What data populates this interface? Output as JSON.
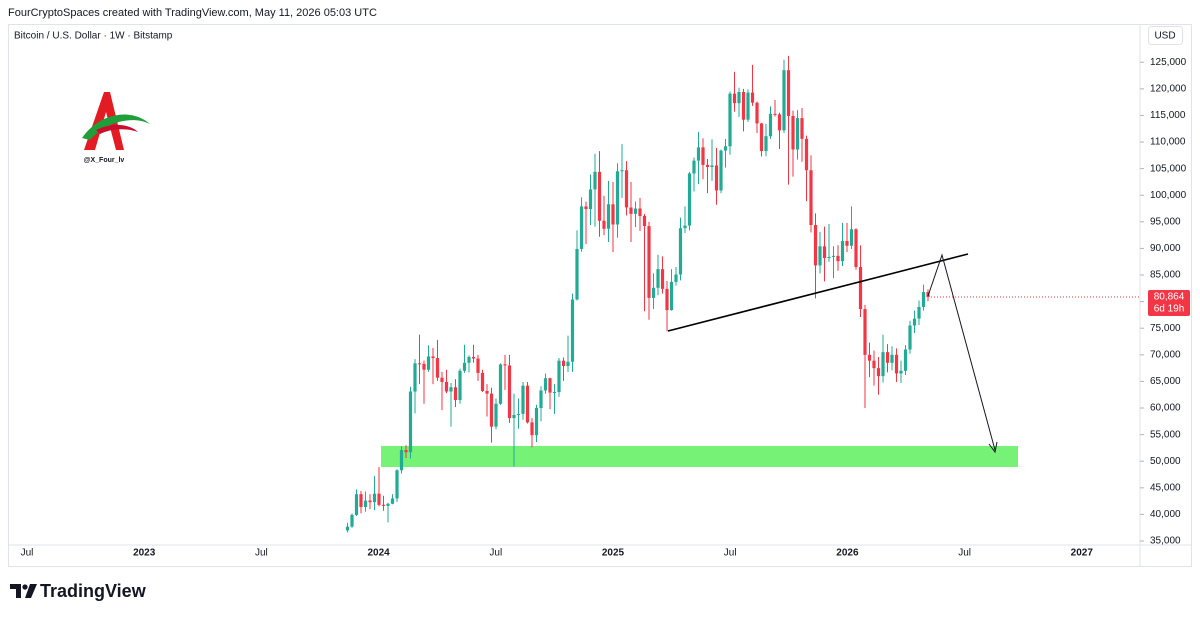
{
  "chart_data": {
    "type": "candlestick",
    "header": "FourCryptoSpaces created with TradingView.com, May 11, 2026 05:03 UTC",
    "title": "Bitcoin / U.S. Dollar · 1W · Bitstamp",
    "currency": "USD",
    "watermark": "@X_Four_lv",
    "brand": "TradingView",
    "last_price_label": "80,864",
    "countdown": "6d 19h",
    "up_color": "#22ab94",
    "down_color": "#f23645",
    "x_labels": [
      "Jul",
      "2023",
      "Jul",
      "2024",
      "Jul",
      "2025",
      "Jul",
      "2026",
      "Jul",
      "2027"
    ],
    "ylim": [
      34250,
      127300
    ],
    "yticks": [
      {
        "value": 35000,
        "label": "35,000"
      },
      {
        "value": 40000,
        "label": "40,000"
      },
      {
        "value": 45000,
        "label": "45,000"
      },
      {
        "value": 50000,
        "label": "50,000"
      },
      {
        "value": 55000,
        "label": "55,000"
      },
      {
        "value": 60000,
        "label": "60,000"
      },
      {
        "value": 65000,
        "label": "65,000"
      },
      {
        "value": 70000,
        "label": "70,000"
      },
      {
        "value": 75000,
        "label": "75,000"
      },
      {
        "value": 80000,
        "label": "80,000"
      },
      {
        "value": 85000,
        "label": "85,000"
      },
      {
        "value": 90000,
        "label": "90,000"
      },
      {
        "value": 95000,
        "label": "95,000"
      },
      {
        "value": 100000,
        "label": "100,000"
      },
      {
        "value": 105000,
        "label": "105,000"
      },
      {
        "value": 110000,
        "label": "110,000"
      },
      {
        "value": 115000,
        "label": "115,000"
      },
      {
        "value": 120000,
        "label": "120,000"
      },
      {
        "value": 125000,
        "label": "125,000"
      }
    ],
    "open": [
      37000,
      37700,
      39900,
      43800,
      41400,
      42600,
      42300,
      43900,
      41800,
      41600,
      42000,
      43000,
      48300,
      52100,
      51700,
      63100,
      68400,
      68300,
      67200,
      69700,
      69400,
      65700,
      64900,
      63100,
      63900,
      61500,
      67000,
      68500,
      69600,
      69300,
      66600,
      63200,
      62700,
      56500,
      60800,
      68200,
      68000,
      58100,
      58700,
      58900,
      64200,
      57300,
      54900,
      60000,
      63300,
      65600,
      62900,
      63000,
      68900,
      67900,
      68700,
      80400,
      89900,
      97900,
      97400,
      101100,
      104400,
      95200,
      93700,
      98300,
      94500,
      104500,
      104700,
      97700,
      96500,
      97500,
      96100,
      94200,
      80700,
      82600,
      86100,
      82400,
      78400,
      83700,
      85100,
      93800,
      94300,
      104100,
      106500,
      109000,
      105700,
      105300,
      105600,
      100900,
      108400,
      109200,
      119100,
      117300,
      119400,
      114200,
      119300,
      117400,
      113500,
      108300,
      111100,
      115300,
      115200,
      112200,
      123500,
      114900,
      108600,
      114500,
      110600,
      104700,
      94400,
      86800,
      90400,
      88200,
      88400,
      88600,
      87600,
      91400,
      90500,
      93600,
      86500,
      78600,
      70000,
      68900,
      67500,
      66000,
      70500,
      68500,
      70000,
      66500,
      67000,
      71000,
      75500,
      76800,
      79000,
      81800
    ],
    "high": [
      38400,
      40200,
      44700,
      44400,
      44300,
      43800,
      47200,
      48900,
      43500,
      42200,
      43800,
      48500,
      52800,
      53000,
      64000,
      69200,
      73800,
      68900,
      71800,
      71300,
      72800,
      66800,
      67200,
      64700,
      65400,
      67400,
      71900,
      69900,
      71900,
      70000,
      67200,
      64500,
      63800,
      61800,
      68400,
      70000,
      70000,
      62700,
      61800,
      64900,
      64900,
      58100,
      60600,
      64100,
      66500,
      65700,
      64500,
      69400,
      69500,
      73600,
      81500,
      93400,
      99600,
      98800,
      103900,
      107800,
      108300,
      99900,
      102700,
      102500,
      106000,
      109600,
      106400,
      102500,
      98800,
      99500,
      96500,
      95000,
      85300,
      88800,
      88500,
      83900,
      86100,
      86500,
      95800,
      97900,
      104400,
      107100,
      111900,
      110700,
      106800,
      110500,
      108900,
      108600,
      110600,
      119500,
      123200,
      120200,
      120000,
      119900,
      124500,
      117600,
      113600,
      113400,
      116700,
      117900,
      115500,
      125500,
      126200,
      115900,
      116000,
      116400,
      111200,
      107500,
      96600,
      93100,
      94100,
      94600,
      90400,
      90600,
      94800,
      94800,
      97900,
      93800,
      90600,
      79400,
      72300,
      70800,
      69600,
      73800,
      72000,
      71600,
      71200,
      68900,
      71800,
      76400,
      78300,
      80200,
      83200,
      82300
    ],
    "low": [
      36600,
      37500,
      39700,
      40200,
      40500,
      41000,
      40800,
      41500,
      40700,
      38500,
      41900,
      42300,
      47700,
      50600,
      50500,
      59000,
      64500,
      60800,
      66800,
      64500,
      65100,
      59600,
      62800,
      56500,
      60200,
      60800,
      66600,
      66700,
      68500,
      65100,
      63000,
      58400,
      53500,
      56000,
      60600,
      63400,
      57200,
      49000,
      56100,
      57800,
      57100,
      52600,
      53600,
      57500,
      62700,
      59800,
      58900,
      62100,
      65100,
      66800,
      66800,
      80200,
      89400,
      90800,
      94400,
      94100,
      92200,
      92500,
      91200,
      89300,
      92000,
      99500,
      96200,
      91200,
      94000,
      93300,
      78200,
      76600,
      78600,
      81200,
      81500,
      74400,
      78300,
      83000,
      84000,
      92900,
      93400,
      100700,
      102100,
      103000,
      100400,
      102700,
      98200,
      100400,
      105200,
      107600,
      115700,
      114700,
      112000,
      113800,
      116800,
      111700,
      107300,
      107300,
      110600,
      114800,
      108700,
      111700,
      102000,
      103500,
      106700,
      106300,
      98900,
      93000,
      80600,
      85300,
      83800,
      87500,
      84400,
      85800,
      86700,
      89300,
      89900,
      86000,
      77100,
      60000,
      65800,
      64200,
      62500,
      64800,
      66700,
      67100,
      64900,
      64700,
      66200,
      70200,
      74100,
      75600,
      78300,
      80100
    ],
    "close": [
      37700,
      39900,
      43800,
      41400,
      42600,
      42300,
      43900,
      41800,
      41600,
      42000,
      43000,
      48300,
      52100,
      51700,
      63100,
      68400,
      68300,
      67200,
      69700,
      69400,
      65700,
      64900,
      63100,
      63900,
      61500,
      67000,
      68500,
      69600,
      69300,
      66600,
      63200,
      62700,
      56500,
      60800,
      68200,
      68000,
      58100,
      58700,
      58900,
      64200,
      57300,
      54900,
      60000,
      63300,
      65600,
      62900,
      63000,
      68900,
      67900,
      68700,
      80400,
      89900,
      97900,
      97400,
      101100,
      104400,
      95200,
      93700,
      98300,
      94500,
      104500,
      104700,
      97700,
      96500,
      97500,
      96100,
      94200,
      80700,
      82600,
      86100,
      82400,
      78400,
      83700,
      85100,
      93800,
      94300,
      104100,
      106500,
      109000,
      105700,
      105300,
      105600,
      100900,
      108400,
      109200,
      119100,
      117300,
      119400,
      114200,
      119300,
      117400,
      113500,
      108300,
      111100,
      115300,
      115200,
      112200,
      123500,
      114900,
      108600,
      114500,
      110600,
      104700,
      94400,
      86800,
      90400,
      88200,
      88400,
      88600,
      87600,
      91400,
      90500,
      93600,
      86500,
      78600,
      70000,
      68900,
      67500,
      66000,
      70500,
      68500,
      70000,
      66500,
      67000,
      71000,
      75500,
      76800,
      79000,
      81800,
      80864
    ]
  }
}
